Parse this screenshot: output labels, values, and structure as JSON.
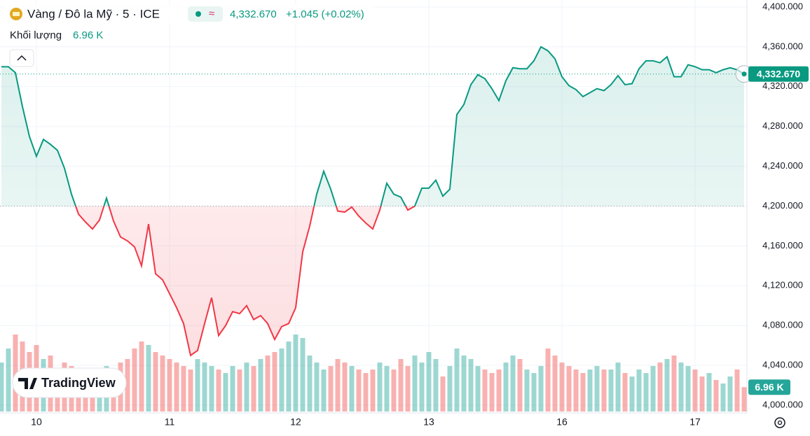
{
  "chart_data": {
    "type": "baseline",
    "title": "Vàng / Đô la Mỹ · 5 · ICE",
    "price_label": "4,332.670",
    "change": "+1.045 (+0.02%)",
    "volume_title": "Khối lượng",
    "volume_label": "6.96 K",
    "brand": "TradingView",
    "baseline": 4200,
    "colors": {
      "up": "#089981",
      "down": "#f23645",
      "volume_up": "#26a69a",
      "volume_down": "#ef5350"
    },
    "grid": true,
    "categories": [
      null,
      null,
      null,
      null,
      null,
      "10",
      null,
      null,
      null,
      null,
      null,
      null,
      null,
      null,
      null,
      null,
      null,
      null,
      null,
      null,
      null,
      null,
      null,
      null,
      "11",
      null,
      null,
      null,
      null,
      null,
      null,
      null,
      null,
      null,
      null,
      null,
      null,
      null,
      null,
      null,
      null,
      null,
      "12",
      null,
      null,
      null,
      null,
      null,
      null,
      null,
      null,
      null,
      null,
      null,
      null,
      null,
      null,
      null,
      null,
      null,
      null,
      "13",
      null,
      null,
      null,
      null,
      null,
      null,
      null,
      null,
      null,
      null,
      null,
      null,
      null,
      null,
      null,
      null,
      null,
      null,
      "16",
      null,
      null,
      null,
      null,
      null,
      null,
      null,
      null,
      null,
      null,
      null,
      null,
      null,
      null,
      null,
      null,
      null,
      null,
      "17",
      null,
      null,
      null,
      null,
      null,
      null,
      null
    ],
    "values": [
      4340,
      4340,
      4334,
      4300,
      4270,
      4250,
      4267,
      4262,
      4256,
      4238,
      4212,
      4192,
      4184,
      4177,
      4186,
      4208,
      4185,
      4169,
      4165,
      4159,
      4140,
      4182,
      4132,
      4126,
      4112,
      4098,
      4082,
      4050,
      4055,
      4082,
      4108,
      4070,
      4080,
      4094,
      4092,
      4100,
      4086,
      4090,
      4082,
      4066,
      4079,
      4082,
      4098,
      4154,
      4180,
      4212,
      4235,
      4217,
      4195,
      4194,
      4199,
      4190,
      4183,
      4177,
      4196,
      4223,
      4212,
      4209,
      4196,
      4200,
      4218,
      4218,
      4226,
      4210,
      4217,
      4292,
      4302,
      4322,
      4332,
      4328,
      4318,
      4306,
      4326,
      4339,
      4338,
      4338,
      4346,
      4360,
      4356,
      4348,
      4330,
      4321,
      4317,
      4310,
      4314,
      4318,
      4316,
      4322,
      4331,
      4322,
      4323,
      4338,
      4346,
      4346,
      4344,
      4350,
      4330,
      4330,
      4342,
      4340,
      4337,
      4337,
      4334,
      4337,
      4339,
      4337,
      4332.67
    ],
    "volume": [
      14,
      18,
      22,
      20,
      17,
      19,
      15,
      16,
      12,
      14,
      13,
      12,
      11,
      10,
      12,
      13,
      12,
      14,
      15,
      18,
      20,
      19,
      17,
      16,
      15,
      14,
      13,
      12,
      15,
      14,
      13,
      12,
      11,
      13,
      12,
      14,
      13,
      15,
      16,
      17,
      18,
      20,
      22,
      21,
      16,
      14,
      12,
      13,
      15,
      14,
      13,
      12,
      11,
      12,
      14,
      13,
      12,
      15,
      13,
      16,
      14,
      17,
      15,
      10,
      13,
      18,
      16,
      15,
      13,
      12,
      11,
      12,
      14,
      16,
      15,
      12,
      11,
      13,
      18,
      16,
      14,
      13,
      12,
      11,
      12,
      13,
      12,
      12,
      14,
      11,
      10,
      12,
      11,
      13,
      14,
      15,
      16,
      14,
      13,
      12,
      10,
      11,
      9,
      8,
      10,
      12,
      6.96
    ],
    "ylim": [
      4000,
      4400
    ],
    "yticks": [
      {
        "value": 4400,
        "label": "4,400.000"
      },
      {
        "value": 4360,
        "label": "4,360.000"
      },
      {
        "value": 4320,
        "label": "4,320.000"
      },
      {
        "value": 4280,
        "label": "4,280.000"
      },
      {
        "value": 4240,
        "label": "4,240.000"
      },
      {
        "value": 4200,
        "label": "4,200.000"
      },
      {
        "value": 4160,
        "label": "4,160.000"
      },
      {
        "value": 4120,
        "label": "4,120.000"
      },
      {
        "value": 4080,
        "label": "4,080.000"
      },
      {
        "value": 4040,
        "label": "4,040.000"
      },
      {
        "value": 4000,
        "label": "4,000.000"
      }
    ],
    "y2lim": [
      0,
      30
    ]
  }
}
